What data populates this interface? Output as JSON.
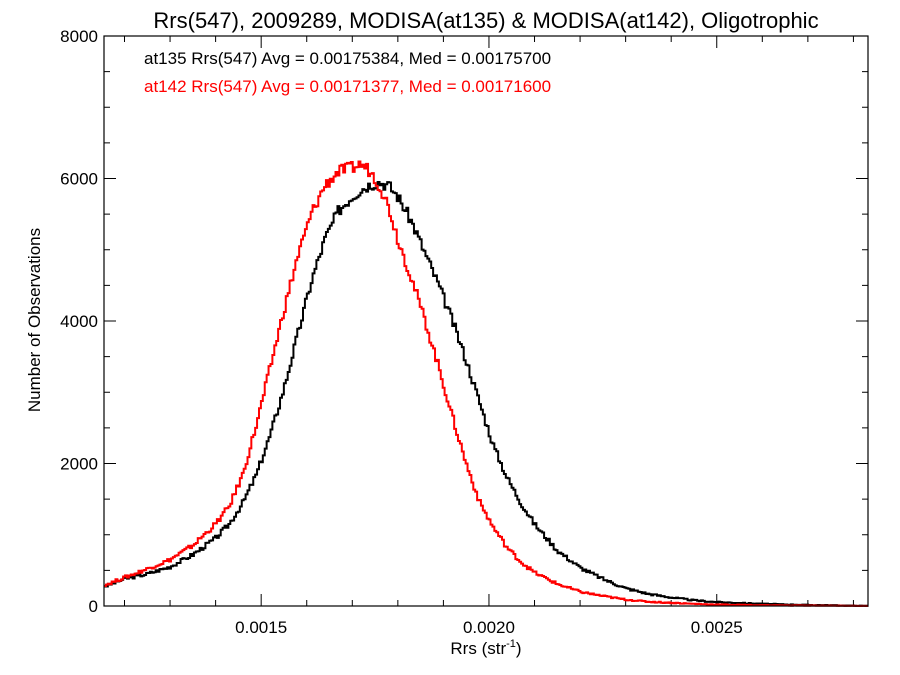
{
  "chart_data": {
    "type": "histogram",
    "title": "Rrs(547), 2009289, MODISA(at135) & MODISA(at142), Oligotrophic",
    "xlabel": "Rrs (str",
    "xlabel_sup": "-1",
    "xlabel_close": ")",
    "ylabel": "Number of Observations",
    "xlim": [
      0.001155,
      0.002832
    ],
    "ylim": [
      0,
      8000
    ],
    "xticks": [
      {
        "value": 0.0015,
        "label": "0.0015"
      },
      {
        "value": 0.002,
        "label": "0.0020"
      },
      {
        "value": 0.0025,
        "label": "0.0025"
      }
    ],
    "x_minor_step": 0.0001,
    "yticks": [
      {
        "value": 0,
        "label": "0"
      },
      {
        "value": 2000,
        "label": "2000"
      },
      {
        "value": 4000,
        "label": "4000"
      },
      {
        "value": 6000,
        "label": "6000"
      },
      {
        "value": 8000,
        "label": "8000"
      }
    ],
    "grid": false,
    "legend_placement": "top-left",
    "series": [
      {
        "label": "at135 Rrs(547) Avg = 0.00175384, Med = 0.00175700",
        "color": "#000000",
        "x": [
          0.00116,
          0.0012,
          0.00125,
          0.0013,
          0.00135,
          0.0014,
          0.00143,
          0.00146,
          0.00149,
          0.00152,
          0.00155,
          0.00158,
          0.00161,
          0.00164,
          0.00167,
          0.0017,
          0.00172,
          0.00174,
          0.00176,
          0.00178,
          0.0018,
          0.00183,
          0.00186,
          0.00189,
          0.00192,
          0.00195,
          0.00198,
          0.00201,
          0.00204,
          0.00207,
          0.0021,
          0.00215,
          0.0022,
          0.00225,
          0.0023,
          0.00235,
          0.0024,
          0.00245,
          0.0025,
          0.0026,
          0.0027,
          0.0028,
          0.00283
        ],
        "values": [
          280,
          380,
          450,
          550,
          720,
          950,
          1150,
          1450,
          1850,
          2400,
          3050,
          3800,
          4550,
          5150,
          5550,
          5750,
          5850,
          5920,
          5950,
          5900,
          5750,
          5400,
          4950,
          4500,
          4000,
          3450,
          2850,
          2250,
          1800,
          1450,
          1150,
          780,
          540,
          380,
          250,
          170,
          120,
          80,
          55,
          30,
          15,
          5,
          2
        ]
      },
      {
        "label": "at142 Rrs(547) Avg = 0.00171377, Med = 0.00171600",
        "color": "#ff0000",
        "x": [
          0.00116,
          0.0012,
          0.00125,
          0.0013,
          0.00135,
          0.0014,
          0.00143,
          0.00146,
          0.00149,
          0.00152,
          0.00155,
          0.00158,
          0.00161,
          0.00164,
          0.00167,
          0.0017,
          0.00172,
          0.00174,
          0.00176,
          0.00178,
          0.0018,
          0.00183,
          0.00186,
          0.00189,
          0.00192,
          0.00195,
          0.00198,
          0.00201,
          0.00204,
          0.00207,
          0.0021,
          0.00215,
          0.0022,
          0.00225,
          0.0023,
          0.00235,
          0.0024,
          0.00245,
          0.0025,
          0.0026,
          0.0027,
          0.0028,
          0.00283
        ],
        "values": [
          300,
          400,
          520,
          650,
          850,
          1150,
          1400,
          1850,
          2550,
          3350,
          4150,
          4900,
          5500,
          5900,
          6100,
          6150,
          6200,
          6100,
          5900,
          5600,
          5150,
          4600,
          4000,
          3350,
          2650,
          2000,
          1450,
          1100,
          820,
          620,
          470,
          310,
          200,
          140,
          90,
          60,
          45,
          30,
          20,
          10,
          5,
          2,
          1
        ]
      }
    ]
  }
}
